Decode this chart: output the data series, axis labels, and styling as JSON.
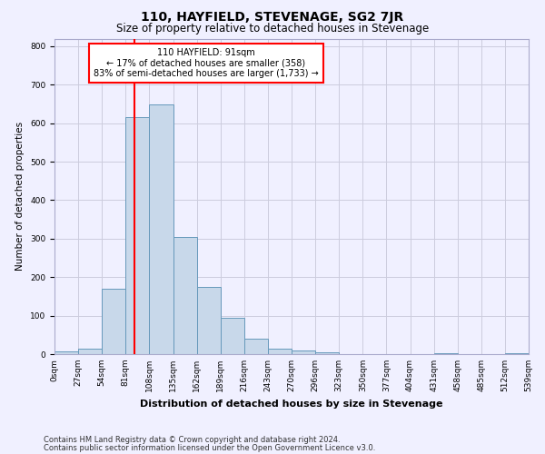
{
  "title": "110, HAYFIELD, STEVENAGE, SG2 7JR",
  "subtitle": "Size of property relative to detached houses in Stevenage",
  "xlabel": "Distribution of detached houses by size in Stevenage",
  "ylabel": "Number of detached properties",
  "bin_labels": [
    "0sqm",
    "27sqm",
    "54sqm",
    "81sqm",
    "108sqm",
    "135sqm",
    "162sqm",
    "189sqm",
    "216sqm",
    "243sqm",
    "270sqm",
    "296sqm",
    "323sqm",
    "350sqm",
    "377sqm",
    "404sqm",
    "431sqm",
    "458sqm",
    "485sqm",
    "512sqm",
    "539sqm"
  ],
  "bar_values": [
    8,
    15,
    170,
    615,
    650,
    305,
    175,
    95,
    40,
    15,
    10,
    5,
    0,
    0,
    0,
    0,
    2,
    0,
    0,
    3
  ],
  "bar_color": "#c8d8ea",
  "bar_edge_color": "#6699bb",
  "vline_color": "red",
  "annotation_text": "110 HAYFIELD: 91sqm\n← 17% of detached houses are smaller (358)\n83% of semi-detached houses are larger (1,733) →",
  "annotation_box_color": "white",
  "annotation_box_edge": "red",
  "ylim": [
    0,
    820
  ],
  "yticks": [
    0,
    100,
    200,
    300,
    400,
    500,
    600,
    700,
    800
  ],
  "footer_line1": "Contains HM Land Registry data © Crown copyright and database right 2024.",
  "footer_line2": "Contains public sector information licensed under the Open Government Licence v3.0.",
  "bg_color": "#f0f0ff",
  "grid_color": "#ccccdd",
  "title_fontsize": 10,
  "subtitle_fontsize": 8.5,
  "xlabel_fontsize": 8,
  "ylabel_fontsize": 7.5,
  "annotation_fontsize": 7,
  "tick_fontsize": 6.5,
  "footer_fontsize": 6
}
